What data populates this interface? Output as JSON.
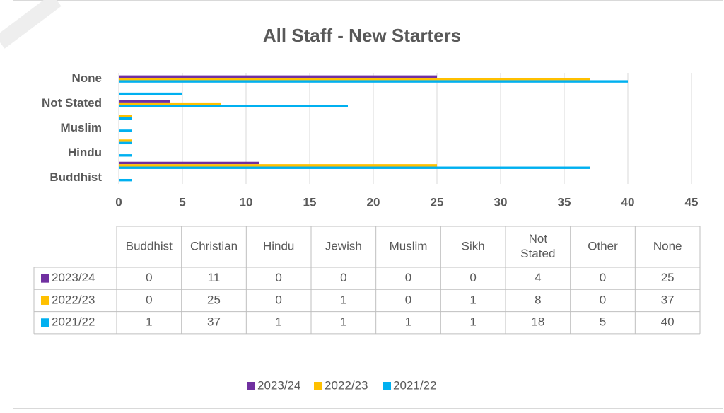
{
  "chart_data": {
    "type": "bar",
    "orientation": "horizontal",
    "title": "All Staff - New Starters",
    "categories": [
      "Buddhist",
      "Christian",
      "Hindu",
      "Jewish",
      "Muslim",
      "Sikh",
      "Not Stated",
      "Other",
      "None"
    ],
    "series": [
      {
        "name": "2023/24",
        "color": "#7030a0",
        "values": [
          0,
          11,
          0,
          0,
          0,
          0,
          4,
          0,
          25
        ]
      },
      {
        "name": "2022/23",
        "color": "#ffc000",
        "values": [
          0,
          25,
          0,
          1,
          0,
          1,
          8,
          0,
          37
        ]
      },
      {
        "name": "2021/22",
        "color": "#00b0f0",
        "values": [
          1,
          37,
          1,
          1,
          1,
          1,
          18,
          5,
          40
        ]
      }
    ],
    "xlim": [
      0,
      45
    ],
    "xticks": [
      0,
      5,
      10,
      15,
      20,
      25,
      30,
      35,
      40,
      45
    ],
    "grid": true,
    "legend": "bottom",
    "data_table": true
  }
}
